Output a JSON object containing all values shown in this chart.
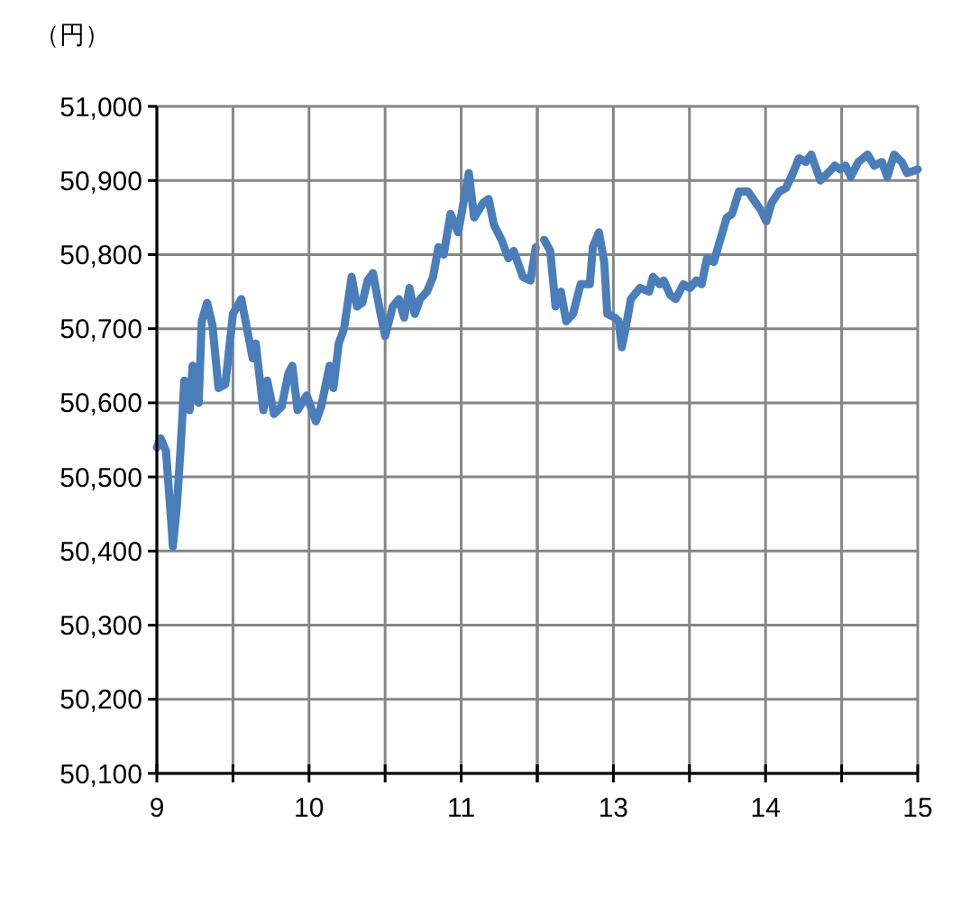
{
  "chart_data": [
    {
      "type": "line",
      "ylabel": "（円）",
      "x": [
        9,
        9.025,
        9.06,
        9.095,
        9.105,
        9.13,
        9.155,
        9.165,
        9.18,
        9.215,
        9.235,
        9.275,
        9.295,
        9.33,
        9.365,
        9.405,
        9.45,
        9.5,
        9.555,
        9.63,
        9.65,
        9.7,
        9.725,
        9.77,
        9.82,
        9.865,
        9.89,
        9.925,
        9.985,
        10.045,
        10.08,
        10.135,
        10.16,
        10.195,
        10.23,
        10.28,
        10.315,
        10.35,
        10.385,
        10.42,
        10.47,
        10.5,
        10.55,
        10.59,
        10.625,
        10.66,
        10.695,
        10.73,
        10.775,
        10.815,
        10.85,
        10.885,
        10.93,
        10.98,
        11.05,
        11.085,
        11.145,
        11.18,
        11.215,
        11.265,
        11.31,
        11.345,
        11.405,
        11.455,
        11.49
      ],
      "series": [
        {
          "color": "#4a7ebb",
          "values": [
            50540,
            50552,
            50535,
            50438,
            50406,
            50457,
            50535,
            50572,
            50630,
            50590,
            50650,
            50600,
            50710,
            50735,
            50705,
            50620,
            50625,
            50720,
            50740,
            50660,
            50680,
            50590,
            50630,
            50585,
            50595,
            50640,
            50650,
            50590,
            50610,
            50575,
            50595,
            50650,
            50620,
            50680,
            50700,
            50770,
            50730,
            50735,
            50765,
            50775,
            50720,
            50690,
            50730,
            50740,
            50715,
            50755,
            50720,
            50740,
            50750,
            50770,
            50810,
            50800,
            50855,
            50830,
            50910,
            50850,
            50870,
            50875,
            50840,
            50820,
            50795,
            50805,
            50770,
            50765,
            50810
          ]
        }
      ],
      "xlim": [
        9,
        11.5
      ],
      "xticks": [
        9,
        {
          "value": 9.5,
          "label": null
        },
        10,
        {
          "value": 10.5,
          "label": null
        },
        11,
        {
          "value": 11.5,
          "label": null
        }
      ],
      "ylim": [
        50100,
        51000
      ],
      "yticks": [
        {
          "value": 50100,
          "label": "50,100"
        },
        {
          "value": 50200,
          "label": "50,200"
        },
        {
          "value": 50300,
          "label": "50,300"
        },
        {
          "value": 50400,
          "label": "50,400"
        },
        {
          "value": 50500,
          "label": "50,500"
        },
        {
          "value": 50600,
          "label": "50,600"
        },
        {
          "value": 50700,
          "label": "50,700"
        },
        {
          "value": 50800,
          "label": "50,800"
        },
        {
          "value": 50900,
          "label": "50,900"
        },
        {
          "value": 51000,
          "label": "51,000"
        }
      ],
      "grid": true,
      "marker": "none",
      "line_style": "solid"
    },
    {
      "type": "line",
      "x": [
        12.545,
        12.585,
        12.62,
        12.655,
        12.69,
        12.735,
        12.785,
        12.845,
        12.865,
        12.905,
        12.94,
        12.96,
        13.01,
        13.035,
        13.055,
        13.08,
        13.115,
        13.175,
        13.235,
        13.26,
        13.305,
        13.33,
        13.375,
        13.41,
        13.46,
        13.505,
        13.545,
        13.58,
        13.615,
        13.66,
        13.695,
        13.745,
        13.78,
        13.825,
        13.885,
        13.935,
        13.97,
        14.005,
        14.04,
        14.09,
        14.135,
        14.18,
        14.22,
        14.265,
        14.3,
        14.36,
        14.41,
        14.455,
        14.49,
        14.525,
        14.56,
        14.61,
        14.67,
        14.715,
        14.765,
        14.8,
        14.845,
        14.895,
        14.93,
        15
      ],
      "series": [
        {
          "color": "#4a7ebb",
          "values": [
            50820,
            50805,
            50730,
            50750,
            50710,
            50720,
            50760,
            50760,
            50810,
            50830,
            50790,
            50720,
            50715,
            50710,
            50675,
            50700,
            50740,
            50755,
            50750,
            50770,
            50760,
            50765,
            50745,
            50740,
            50760,
            50755,
            50765,
            50760,
            50795,
            50790,
            50815,
            50850,
            50855,
            50885,
            50885,
            50870,
            50860,
            50845,
            50870,
            50885,
            50890,
            50910,
            50930,
            50925,
            50935,
            50900,
            50910,
            50920,
            50915,
            50920,
            50905,
            50925,
            50935,
            50920,
            50925,
            50905,
            50935,
            50925,
            50910,
            50915
          ]
        }
      ],
      "xlim": [
        12.5,
        15
      ],
      "xticks": [
        {
          "value": 12.5,
          "label": null
        },
        13,
        {
          "value": 13.5,
          "label": null
        },
        14,
        {
          "value": 14.5,
          "label": null
        },
        15
      ],
      "ylim": [
        50100,
        51000
      ],
      "tick_labels": "x",
      "grid": true,
      "marker": "none",
      "line_style": "solid"
    }
  ]
}
